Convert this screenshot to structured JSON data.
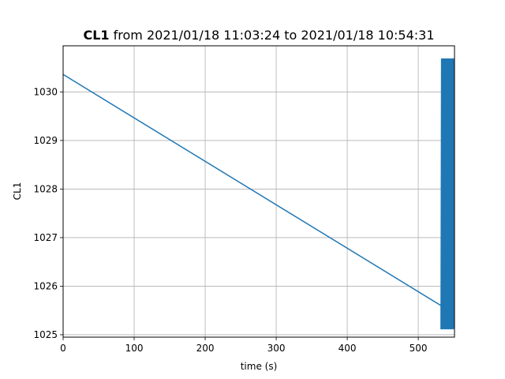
{
  "chart_data": {
    "type": "line",
    "title": {
      "signal": "CL1",
      "rest": " from 2021/01/18 11:03:24 to 2021/01/18 10:54:31"
    },
    "xlabel": "time (s)",
    "ylabel": "CL1",
    "xlim": [
      0,
      551
    ],
    "ylim": [
      1024.95,
      1030.95
    ],
    "xticks": [
      0,
      100,
      200,
      300,
      400,
      500
    ],
    "yticks": [
      1025,
      1026,
      1027,
      1028,
      1029,
      1030
    ],
    "grid": true,
    "series": [
      {
        "color": "#1f77b4",
        "segments": [
          {
            "kind": "line",
            "x": [
              0,
              532
            ],
            "y": [
              1030.36,
              1025.6
            ]
          },
          {
            "kind": "oscillation",
            "x_range": [
              532,
              551
            ],
            "y_min": 1025.12,
            "y_max": 1030.68
          }
        ]
      }
    ]
  }
}
